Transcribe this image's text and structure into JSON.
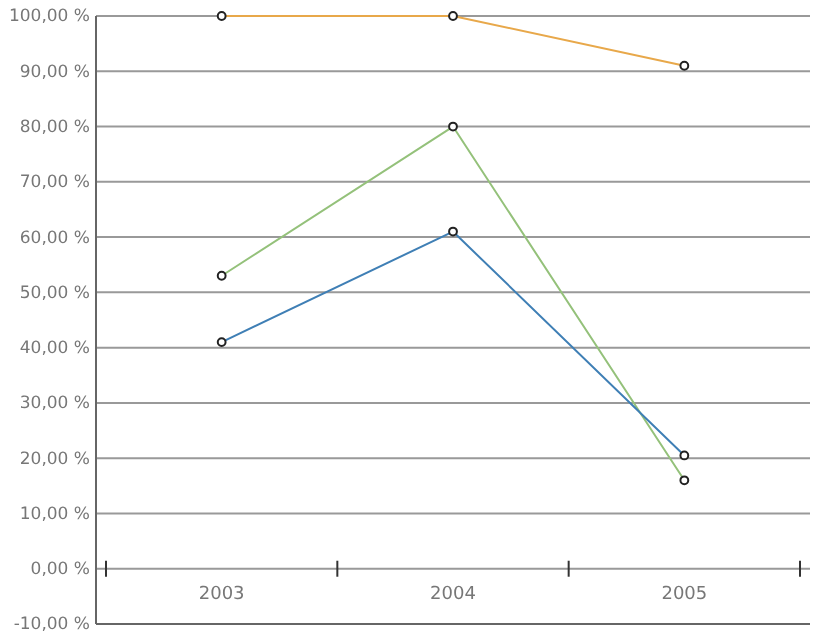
{
  "chart_data": {
    "type": "line",
    "categories": [
      "2003",
      "2004",
      "2005"
    ],
    "series": [
      {
        "color": "#e8a84a",
        "values": [
          100,
          100,
          91
        ]
      },
      {
        "color": "#94c17a",
        "values": [
          53,
          80,
          16
        ]
      },
      {
        "color": "#3f7fb5",
        "values": [
          41,
          61,
          20.5
        ]
      }
    ],
    "ylim": [
      -10,
      100
    ],
    "yticks": [
      {
        "value": -10,
        "label": "-10,00 %"
      },
      {
        "value": 0,
        "label": "0,00 %"
      },
      {
        "value": 10,
        "label": "10,00 %"
      },
      {
        "value": 20,
        "label": "20,00 %"
      },
      {
        "value": 30,
        "label": "30,00 %"
      },
      {
        "value": 40,
        "label": "40,00 %"
      },
      {
        "value": 50,
        "label": "50,00 %"
      },
      {
        "value": 60,
        "label": "60,00 %"
      },
      {
        "value": 70,
        "label": "70,00 %"
      },
      {
        "value": 80,
        "label": "80,00 %"
      },
      {
        "value": 90,
        "label": "90,00 %"
      },
      {
        "value": 100,
        "label": "100,00 %"
      }
    ],
    "grid": "y",
    "marker": "circle",
    "line_style": "solid"
  }
}
